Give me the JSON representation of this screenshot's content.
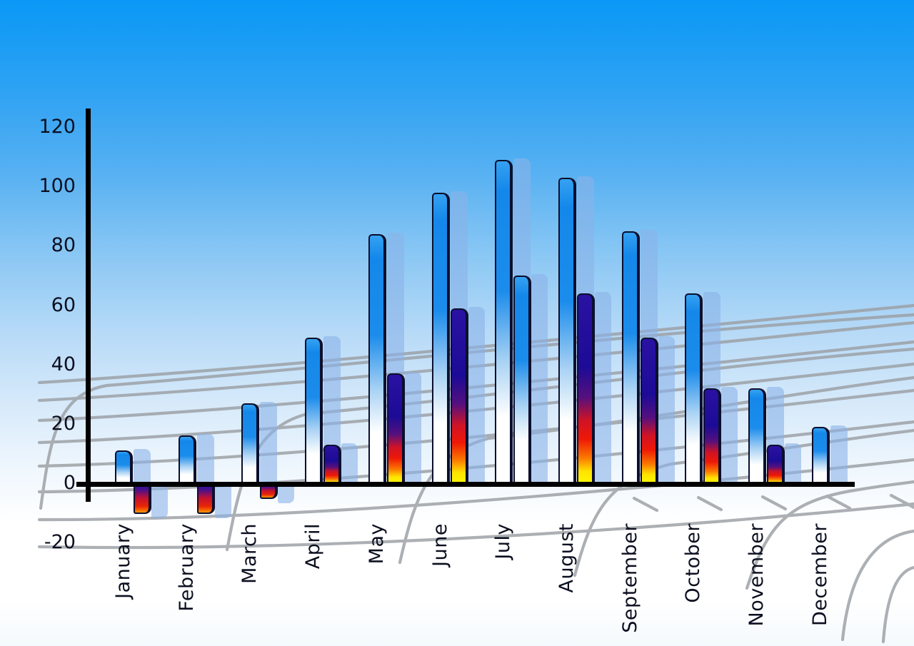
{
  "chart_data": {
    "type": "bar",
    "title": "",
    "xlabel": "",
    "ylabel": "",
    "ylim": [
      -20,
      120
    ],
    "y_ticks": [
      120,
      100,
      80,
      60,
      40,
      20,
      0,
      -20
    ],
    "grid": "decorative perspective wireframe, no value gridlines",
    "legend": "none",
    "categories": [
      "January",
      "February",
      "March",
      "April",
      "May",
      "June",
      "July",
      "August",
      "September",
      "October",
      "November",
      "December"
    ],
    "series": [
      {
        "name": "series-1-blue-gradient",
        "values": [
          11,
          16,
          27,
          49,
          84,
          98,
          109,
          103,
          85,
          64,
          32,
          19
        ]
      },
      {
        "name": "series-2-multicolor-gradient",
        "values": [
          -10,
          -10,
          -5,
          13,
          37,
          59,
          70,
          64,
          49,
          32,
          13,
          null
        ],
        "bar_style": [
          "multi",
          "multi",
          "multi",
          "multi",
          "multi",
          "multi",
          "blue",
          "multi",
          "multi",
          "multi",
          "multi",
          null
        ]
      }
    ],
    "colors": {
      "sky_top": "#0a98f6",
      "sky_bottom": "#ffffff",
      "bar_blue_top": "#1488ea",
      "bar_blue_bottom": "#ffffff",
      "bar_multi_navy": "#1c0b96",
      "bar_multi_red": "#ee1807",
      "bar_multi_yellow": "#fcf900",
      "bar_outline": "#0b0f2e",
      "bar_shadow": "rgba(138,178,232,0.6)",
      "axis": "#000000",
      "grid_line": "#9b9fa4",
      "label_text": "#0b0f1f"
    }
  }
}
